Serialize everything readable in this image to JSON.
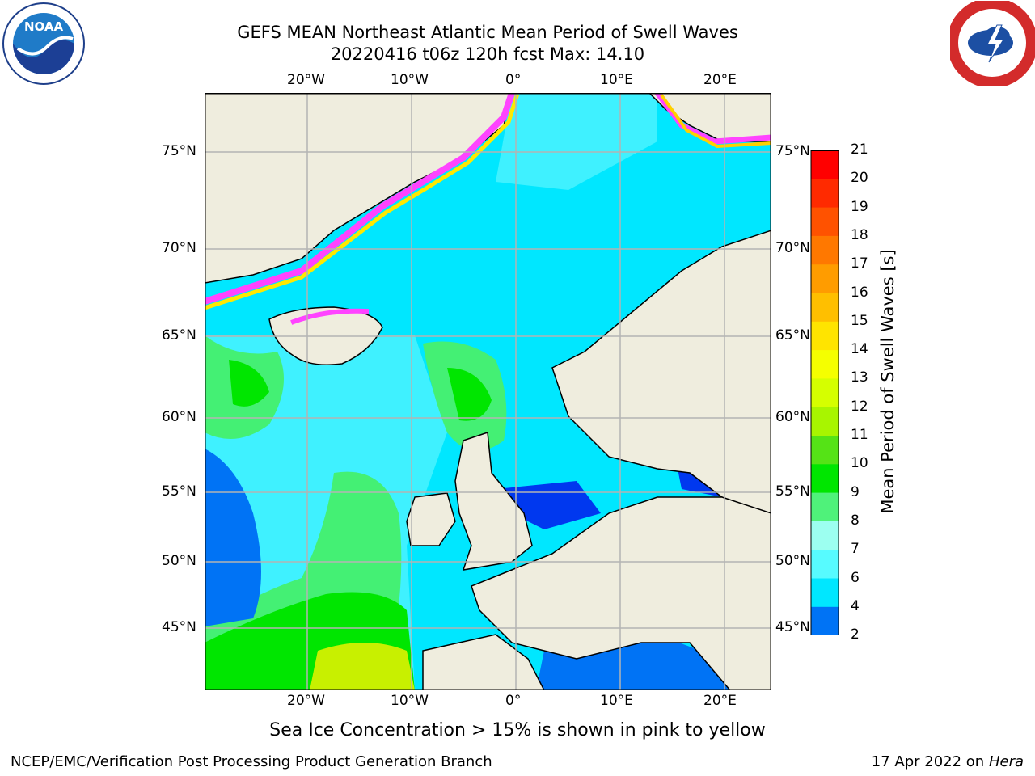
{
  "header": {
    "title_line1": "GEFS MEAN Northeast Atlantic Mean Period of Swell Waves",
    "title_line2": "20220416 t06z 120h fcst   Max: 14.10"
  },
  "logos": {
    "left": {
      "name": "noaa-logo",
      "text": "NOAA",
      "ring_text": "NATIONAL OCEANIC AND ATMOSPHERIC ADMINISTRATION · U.S. DEPARTMENT OF COMMERCE"
    },
    "right": {
      "name": "nws-logo",
      "ring_text": "NATIONAL WEATHER SERVICE"
    }
  },
  "map": {
    "lon_labels": [
      "20°W",
      "10°W",
      "0°",
      "10°E",
      "20°E"
    ],
    "lat_labels": [
      "75°N",
      "70°N",
      "65°N",
      "60°N",
      "55°N",
      "50°N",
      "45°N"
    ],
    "colors": {
      "land": "#efedde",
      "ocean_cyan": "#00e7ff",
      "ocean_light": "#3ff1ff",
      "swell_green": "#44f074",
      "swell_lime": "#00e600",
      "swell_yellow": "#c8f000",
      "shallow_blue": "#0038ef",
      "mid_blue": "#0073f5",
      "ice_pink": "#ff44ff",
      "ice_yellow": "#ffe800",
      "grid": "#b4b4b4"
    }
  },
  "colorbar": {
    "label": "Mean Period of Swell Waves [s]",
    "ticks": [
      "21",
      "20",
      "19",
      "18",
      "17",
      "16",
      "15",
      "14",
      "13",
      "12",
      "11",
      "10",
      "9",
      "8",
      "7",
      "6",
      "4",
      "2"
    ],
    "colors": [
      "#ff0000",
      "#ff2a00",
      "#ff5200",
      "#ff7800",
      "#ff9c00",
      "#ffbf00",
      "#ffe400",
      "#f5ff00",
      "#d5ff00",
      "#a8f500",
      "#55e316",
      "#00e600",
      "#4ff27a",
      "#9cfff0",
      "#57fbff",
      "#00e7ff",
      "#0073f5",
      "#0000ee"
    ]
  },
  "footer": {
    "note": "Sea Ice Concentration > 15% is shown in pink to yellow",
    "left": "NCEP/EMC/Verification Post Processing Product Generation Branch",
    "right_date": "17 Apr 2022 on ",
    "right_host": "Hera"
  }
}
